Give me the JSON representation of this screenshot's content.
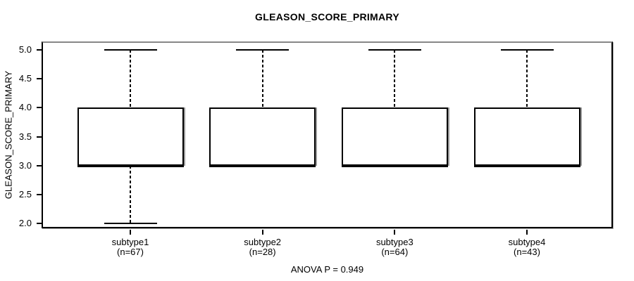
{
  "title": "GLEASON_SCORE_PRIMARY",
  "chart_data": {
    "type": "boxplot",
    "title": "GLEASON_SCORE_PRIMARY",
    "xlabel": "",
    "ylabel": "GLEASON_SCORE_PRIMARY",
    "ylim": [
      2.0,
      5.0
    ],
    "y_ticks": [
      2.0,
      2.5,
      3.0,
      3.5,
      4.0,
      4.5,
      5.0
    ],
    "grid": false,
    "legend": "none",
    "annotation": "ANOVA P = 0.949",
    "categories": [
      "subtype1",
      "subtype2",
      "subtype3",
      "subtype4"
    ],
    "series": [
      {
        "name": "subtype1",
        "n": 67,
        "n_label": "(n=67)",
        "whisker_low": 2.0,
        "q1": 3.0,
        "median": 3.0,
        "q3": 4.0,
        "whisker_high": 5.0
      },
      {
        "name": "subtype2",
        "n": 28,
        "n_label": "(n=28)",
        "whisker_low": 3.0,
        "q1": 3.0,
        "median": 3.0,
        "q3": 4.0,
        "whisker_high": 5.0
      },
      {
        "name": "subtype3",
        "n": 64,
        "n_label": "(n=64)",
        "whisker_low": 3.0,
        "q1": 3.0,
        "median": 3.0,
        "q3": 4.0,
        "whisker_high": 5.0
      },
      {
        "name": "subtype4",
        "n": 43,
        "n_label": "(n=43)",
        "whisker_low": 3.0,
        "q1": 3.0,
        "median": 3.0,
        "q3": 4.0,
        "whisker_high": 5.0
      }
    ],
    "colors": {
      "line": "#000000",
      "background": "#ffffff",
      "frame_top": "#878787"
    }
  }
}
